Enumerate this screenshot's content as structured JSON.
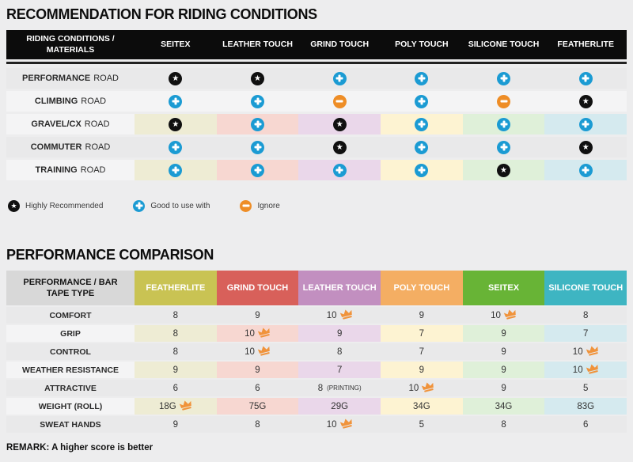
{
  "colors": {
    "page_bg": "#ededee",
    "plus_blue": "#1b9bd3",
    "minus_orange": "#ee8d26",
    "star_black": "#101010",
    "crown_orange": "#f0933b",
    "pale_cells": [
      "#eeecd4",
      "#f7d7d1",
      "#ead7ea",
      "#fdf3d2",
      "#dff0d9",
      "#d5eaef"
    ]
  },
  "section1": {
    "title": "RECOMMENDATION FOR RIDING CONDITIONS",
    "table": {
      "header_label": "RIDING CONDITIONS / MATERIALS",
      "columns": [
        "SEITEX",
        "LEATHER TOUCH",
        "GRIND TOUCH",
        "POLY TOUCH",
        "SILICONE TOUCH",
        "FEATHERLITE"
      ],
      "rows": [
        {
          "label_bold": "PERFORMANCE",
          "label_rest": "ROAD",
          "shade": "dark",
          "colored": false,
          "cells": [
            "star",
            "star",
            "plus",
            "plus",
            "plus",
            "plus"
          ]
        },
        {
          "label_bold": "CLIMBING",
          "label_rest": "ROAD",
          "shade": "light",
          "colored": false,
          "cells": [
            "plus",
            "plus",
            "minus",
            "plus",
            "minus",
            "star"
          ]
        },
        {
          "label_bold": "GRAVEL/CX",
          "label_rest": "ROAD",
          "shade": "light",
          "colored": true,
          "cells": [
            "star",
            "plus",
            "star",
            "plus",
            "plus",
            "plus"
          ]
        },
        {
          "label_bold": "COMMUTER",
          "label_rest": "ROAD",
          "shade": "dark",
          "colored": false,
          "cells": [
            "plus",
            "plus",
            "star",
            "plus",
            "plus",
            "star"
          ]
        },
        {
          "label_bold": "TRAINING",
          "label_rest": "ROAD",
          "shade": "light",
          "colored": true,
          "cells": [
            "plus",
            "plus",
            "plus",
            "plus",
            "star",
            "plus"
          ]
        }
      ]
    },
    "legend": [
      {
        "icon": "star",
        "label": "Highly Recommended"
      },
      {
        "icon": "plus",
        "label": "Good to use with"
      },
      {
        "icon": "minus",
        "label": "Ignore"
      }
    ]
  },
  "section2": {
    "title": "PERFORMANCE COMPARISON",
    "table": {
      "header_label": "PERFORMANCE / BAR TAPE TYPE",
      "columns": [
        {
          "label": "FEATHERLITE",
          "color": "#c9c353"
        },
        {
          "label": "GRIND TOUCH",
          "color": "#d8605a"
        },
        {
          "label": "LEATHER TOUCH",
          "color": "#c28fc0"
        },
        {
          "label": "POLY TOUCH",
          "color": "#f4ae63"
        },
        {
          "label": "SEITEX",
          "color": "#68b436"
        },
        {
          "label": "SILICONE TOUCH",
          "color": "#3eb5c2"
        }
      ],
      "rows": [
        {
          "label": "COMFORT",
          "shade": "dark",
          "colored": false,
          "cells": [
            {
              "v": "8"
            },
            {
              "v": "9"
            },
            {
              "v": "10",
              "crown": true
            },
            {
              "v": "9"
            },
            {
              "v": "10",
              "crown": true
            },
            {
              "v": "8"
            }
          ]
        },
        {
          "label": "GRIP",
          "shade": "light",
          "colored": true,
          "cells": [
            {
              "v": "8"
            },
            {
              "v": "10",
              "crown": true
            },
            {
              "v": "9"
            },
            {
              "v": "7"
            },
            {
              "v": "9"
            },
            {
              "v": "7"
            }
          ]
        },
        {
          "label": "CONTROL",
          "shade": "dark",
          "colored": false,
          "cells": [
            {
              "v": "8"
            },
            {
              "v": "10",
              "crown": true
            },
            {
              "v": "8"
            },
            {
              "v": "7"
            },
            {
              "v": "9"
            },
            {
              "v": "10",
              "crown": true
            }
          ]
        },
        {
          "label": "WEATHER RESISTANCE",
          "shade": "light",
          "colored": true,
          "cells": [
            {
              "v": "9"
            },
            {
              "v": "9"
            },
            {
              "v": "7"
            },
            {
              "v": "9"
            },
            {
              "v": "9"
            },
            {
              "v": "10",
              "crown": true
            }
          ]
        },
        {
          "label": "ATTRACTIVE",
          "shade": "dark",
          "colored": false,
          "cells": [
            {
              "v": "6"
            },
            {
              "v": "6"
            },
            {
              "v": "8",
              "note": "(PRINTING)"
            },
            {
              "v": "10",
              "crown": true
            },
            {
              "v": "9"
            },
            {
              "v": "5"
            }
          ]
        },
        {
          "label": "WEIGHT (ROLL)",
          "shade": "light",
          "colored": true,
          "cells": [
            {
              "v": "18G",
              "crown": true
            },
            {
              "v": "75G"
            },
            {
              "v": "29G"
            },
            {
              "v": "34G"
            },
            {
              "v": "34G"
            },
            {
              "v": "83G"
            }
          ]
        },
        {
          "label": "SWEAT HANDS",
          "shade": "dark",
          "colored": false,
          "cells": [
            {
              "v": "9"
            },
            {
              "v": "8"
            },
            {
              "v": "10",
              "crown": true
            },
            {
              "v": "5"
            },
            {
              "v": "8"
            },
            {
              "v": "6"
            }
          ]
        }
      ]
    },
    "remark": "REMARK: A higher score is better"
  }
}
